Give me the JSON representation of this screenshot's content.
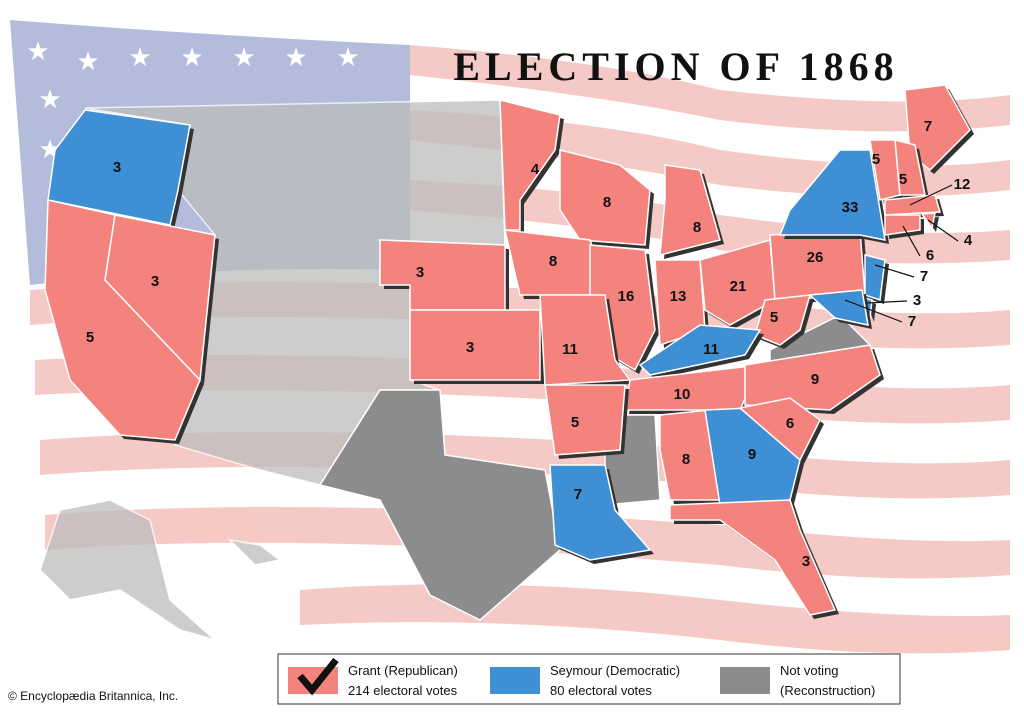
{
  "title": "ELECTION OF 1868",
  "states": [
    {
      "votes": 3,
      "color": "#3f8fd4"
    },
    {
      "votes": 5,
      "color": "#f4837e"
    },
    {
      "votes": 3,
      "color": "#f4837e"
    },
    {
      "votes": 3,
      "color": "#f4837e"
    },
    {
      "votes": 3,
      "color": "#f4837e"
    },
    {
      "votes": 4,
      "color": "#f4837e"
    },
    {
      "votes": 8,
      "color": "#f4837e"
    },
    {
      "votes": 8,
      "color": "#f4837e"
    },
    {
      "votes": 16,
      "color": "#f4837e"
    },
    {
      "votes": 8,
      "color": "#f4837e"
    },
    {
      "votes": 13,
      "color": "#f4837e"
    },
    {
      "votes": 21,
      "color": "#f4837e"
    },
    {
      "votes": 26,
      "color": "#f4837e"
    },
    {
      "votes": 33,
      "color": "#3f8fd4"
    },
    {
      "votes": 7,
      "color": "#f4837e"
    },
    {
      "votes": 5,
      "color": "#f4837e"
    },
    {
      "votes": 5,
      "color": "#f4837e"
    },
    {
      "votes": 12,
      "color": "#f4837e"
    },
    {
      "votes": 4,
      "color": "#f4837e"
    },
    {
      "votes": 6,
      "color": "#f4837e"
    },
    {
      "votes": 7,
      "color": "#3f8fd4"
    },
    {
      "votes": 3,
      "color": "#3f8fd4"
    },
    {
      "votes": 7,
      "color": "#3f8fd4"
    },
    {
      "votes": 5,
      "color": "#f4837e"
    },
    {
      "votes": 11,
      "color": "#3f8fd4"
    },
    {
      "votes": 11,
      "color": "#f4837e"
    },
    {
      "votes": 10,
      "color": "#f4837e"
    },
    {
      "votes": 9,
      "color": "#f4837e"
    },
    {
      "votes": 5,
      "color": "#f4837e"
    },
    {
      "votes": 7,
      "color": "#3f8fd4"
    },
    {
      "votes": 8,
      "color": "#f4837e"
    },
    {
      "votes": 9,
      "color": "#3f8fd4"
    },
    {
      "votes": 6,
      "color": "#f4837e"
    },
    {
      "votes": 3,
      "color": "#f4837e"
    }
  ],
  "legend": [
    {
      "lines": [
        "Grant (Republican)",
        "214 electoral votes"
      ],
      "color": "#f4837e"
    },
    {
      "lines": [
        "Seymour (Democratic)",
        "80 electoral votes"
      ],
      "color": "#3f8fd4"
    },
    {
      "lines": [
        "Not voting",
        "(Reconstruction)"
      ],
      "color": "#8c8c8e"
    }
  ],
  "credit": "© Encyclopædia Britannica, Inc."
}
